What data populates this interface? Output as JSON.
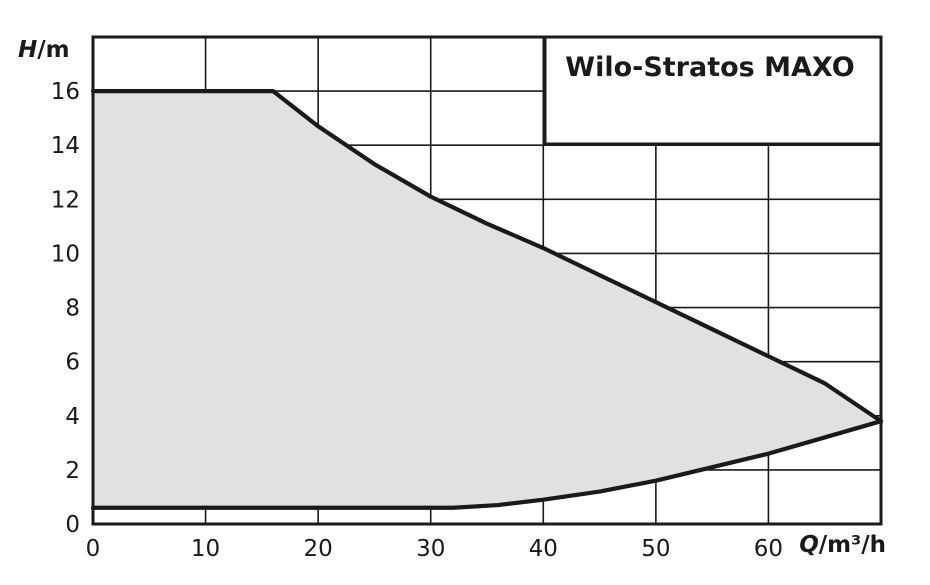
{
  "chart_data": {
    "type": "area",
    "title": "Wilo-Stratos MAXO",
    "ylabel_var": "H",
    "ylabel_unit": "/m",
    "xlabel_var": "Q",
    "xlabel_unit": "/m³/h",
    "xlim": [
      0,
      70
    ],
    "ylim": [
      0,
      18
    ],
    "x_ticks": [
      "0",
      "10",
      "20",
      "30",
      "40",
      "50",
      "60"
    ],
    "y_ticks": [
      "0",
      "2",
      "4",
      "6",
      "8",
      "10",
      "12",
      "14",
      "16"
    ],
    "x_tick_values": [
      0,
      10,
      20,
      30,
      40,
      50,
      60
    ],
    "y_tick_values": [
      0,
      2,
      4,
      6,
      8,
      10,
      12,
      14,
      16
    ],
    "grid": true,
    "colors": {
      "fill": "#e0e1e3",
      "curve": "#1a1a1a",
      "grid": "#1a1a1a"
    },
    "series": [
      {
        "role": "max-curve",
        "x": [
          0,
          16,
          20,
          25,
          30,
          35,
          40,
          45,
          50,
          55,
          60,
          65,
          70
        ],
        "y": [
          16,
          16,
          14.7,
          13.3,
          12.1,
          11.1,
          10.2,
          9.2,
          8.2,
          7.2,
          6.2,
          5.2,
          3.8
        ]
      },
      {
        "role": "min-curve",
        "x": [
          0,
          32,
          36,
          40,
          45,
          50,
          55,
          60,
          65,
          70
        ],
        "y": [
          0.6,
          0.6,
          0.7,
          0.9,
          1.2,
          1.6,
          2.1,
          2.6,
          3.2,
          3.8
        ]
      }
    ]
  }
}
